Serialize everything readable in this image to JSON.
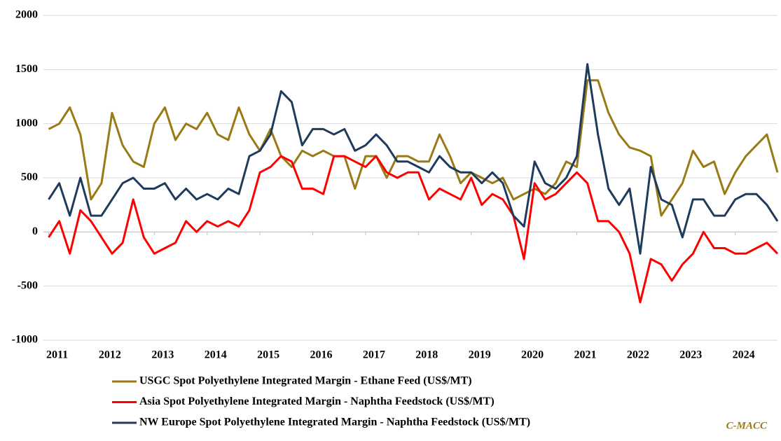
{
  "chart_data": {
    "type": "line",
    "annotation": "C-MACC",
    "x": [
      2011.0,
      2011.2,
      2011.4,
      2011.6,
      2011.8,
      2012.0,
      2012.2,
      2012.4,
      2012.6,
      2012.8,
      2013.0,
      2013.2,
      2013.4,
      2013.6,
      2013.8,
      2014.0,
      2014.2,
      2014.4,
      2014.6,
      2014.8,
      2015.0,
      2015.2,
      2015.4,
      2015.6,
      2015.8,
      2016.0,
      2016.2,
      2016.4,
      2016.6,
      2016.8,
      2017.0,
      2017.2,
      2017.4,
      2017.6,
      2017.8,
      2018.0,
      2018.2,
      2018.4,
      2018.6,
      2018.8,
      2019.0,
      2019.2,
      2019.4,
      2019.6,
      2019.8,
      2020.0,
      2020.2,
      2020.4,
      2020.6,
      2020.8,
      2021.0,
      2021.2,
      2021.4,
      2021.6,
      2021.8,
      2022.0,
      2022.2,
      2022.4,
      2022.6,
      2022.8,
      2023.0,
      2023.2,
      2023.4,
      2023.6,
      2023.8,
      2024.0,
      2024.2,
      2024.4,
      2024.6,
      2024.8
    ],
    "series": [
      {
        "name": "USGC Spot Polyethylene Integrated Margin - Ethane Feed (US$/MT)",
        "color": "#9a7a14",
        "values": [
          950,
          1000,
          1150,
          900,
          300,
          450,
          1100,
          800,
          650,
          600,
          1000,
          1150,
          850,
          1000,
          950,
          1100,
          900,
          850,
          1150,
          900,
          750,
          950,
          700,
          600,
          750,
          700,
          750,
          700,
          700,
          400,
          700,
          700,
          500,
          700,
          700,
          650,
          650,
          900,
          700,
          450,
          550,
          500,
          450,
          500,
          300,
          350,
          400,
          350,
          450,
          650,
          600,
          1400,
          1400,
          1100,
          900,
          780,
          750,
          700,
          150,
          300,
          450,
          750,
          600,
          650,
          350,
          550,
          700,
          800,
          900,
          550
        ]
      },
      {
        "name": "Asia Spot Polyethylene Integrated Margin - Naphtha Feedstock (US$/MT)",
        "color": "#ff0000",
        "values": [
          -50,
          100,
          -200,
          200,
          100,
          -50,
          -200,
          -100,
          300,
          -50,
          -200,
          -150,
          -100,
          100,
          0,
          100,
          50,
          100,
          50,
          200,
          550,
          600,
          700,
          650,
          400,
          400,
          350,
          700,
          700,
          650,
          600,
          700,
          550,
          500,
          550,
          550,
          300,
          400,
          350,
          300,
          500,
          250,
          350,
          300,
          150,
          -250,
          450,
          300,
          350,
          450,
          550,
          450,
          100,
          100,
          0,
          -200,
          -650,
          -250,
          -300,
          -450,
          -300,
          -200,
          0,
          -150,
          -150,
          -200,
          -200,
          -150,
          -100,
          -200
        ]
      },
      {
        "name": "NW Europe Spot Polyethylene Integrated Margin - Naphtha Feedstock (US$/MT)",
        "color": "#1f3b5c",
        "values": [
          300,
          450,
          150,
          500,
          150,
          150,
          300,
          450,
          500,
          400,
          400,
          450,
          300,
          400,
          300,
          350,
          300,
          400,
          350,
          700,
          750,
          900,
          1300,
          1200,
          800,
          950,
          950,
          900,
          950,
          750,
          800,
          900,
          800,
          650,
          650,
          600,
          550,
          700,
          600,
          550,
          550,
          450,
          550,
          450,
          150,
          50,
          650,
          450,
          400,
          500,
          700,
          1550,
          900,
          400,
          250,
          400,
          -200,
          600,
          300,
          250,
          -50,
          300,
          300,
          150,
          150,
          300,
          350,
          350,
          250,
          100
        ]
      }
    ],
    "xlim": [
      2010.9,
      2024.8
    ],
    "xticks": [
      2011,
      2012,
      2013,
      2014,
      2015,
      2016,
      2017,
      2018,
      2019,
      2020,
      2021,
      2022,
      2023,
      2024
    ],
    "ylim": [
      -1000,
      2000
    ],
    "yticks": [
      -1000,
      -500,
      0,
      500,
      1000,
      1500,
      2000
    ],
    "grid": true
  }
}
